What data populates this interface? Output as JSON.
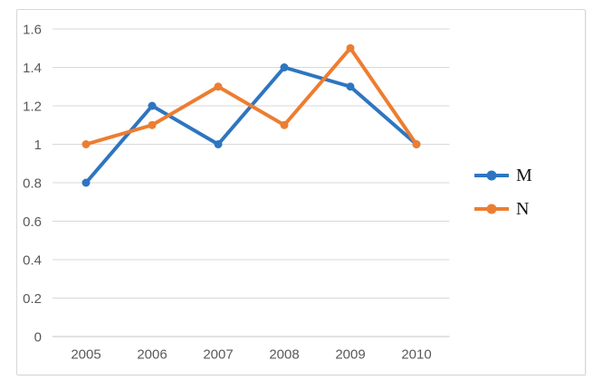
{
  "chart_data": {
    "type": "line",
    "title": "",
    "xlabel": "",
    "ylabel": "",
    "categories": [
      "2005",
      "2006",
      "2007",
      "2008",
      "2009",
      "2010"
    ],
    "series": [
      {
        "name": "M",
        "color": "#2E75C0",
        "values": [
          0.8,
          1.2,
          1.0,
          1.4,
          1.3,
          1.0
        ]
      },
      {
        "name": "N",
        "color": "#ED7D31",
        "values": [
          1.0,
          1.1,
          1.3,
          1.1,
          1.5,
          1.0
        ]
      }
    ],
    "ylim": [
      0,
      1.6
    ],
    "y_ticks": [
      {
        "value": 0,
        "label": "0"
      },
      {
        "value": 0.2,
        "label": "0.2"
      },
      {
        "value": 0.4,
        "label": "0.4"
      },
      {
        "value": 0.6,
        "label": "0.6"
      },
      {
        "value": 0.8,
        "label": "0.8"
      },
      {
        "value": 1,
        "label": "1"
      },
      {
        "value": 1.2,
        "label": "1.2"
      },
      {
        "value": 1.4,
        "label": "1.4"
      },
      {
        "value": 1.6,
        "label": "1.6"
      }
    ],
    "grid": true,
    "legend_position": "right",
    "marker": "circle"
  },
  "colors": {
    "grid": "#D9D9D9",
    "axis_line": "#C6C6C6",
    "axis_text": "#595959",
    "frame_border": "#D7D7D7",
    "background": "#FFFFFF"
  }
}
